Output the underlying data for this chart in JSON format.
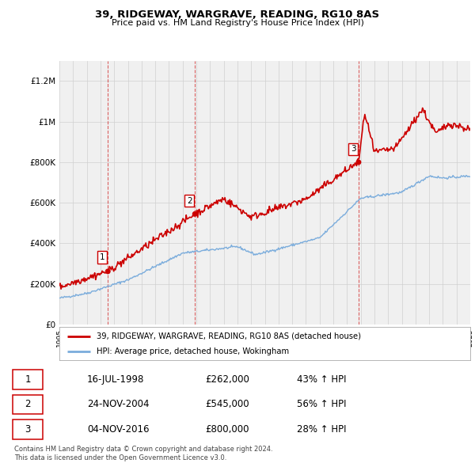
{
  "title": "39, RIDGEWAY, WARGRAVE, READING, RG10 8AS",
  "subtitle": "Price paid vs. HM Land Registry's House Price Index (HPI)",
  "sale_dates": [
    "1998-07-16",
    "2004-11-24",
    "2016-11-04"
  ],
  "sale_prices": [
    262000,
    545000,
    800000
  ],
  "sale_labels": [
    "1",
    "2",
    "3"
  ],
  "sale_hpi_pct": [
    "43%",
    "56%",
    "28%"
  ],
  "sale_date_labels": [
    "16-JUL-1998",
    "24-NOV-2004",
    "04-NOV-2016"
  ],
  "legend_entries": [
    "39, RIDGEWAY, WARGRAVE, READING, RG10 8AS (detached house)",
    "HPI: Average price, detached house, Wokingham"
  ],
  "footnote1": "Contains HM Land Registry data © Crown copyright and database right 2024.",
  "footnote2": "This data is licensed under the Open Government Licence v3.0.",
  "color_red": "#cc0000",
  "color_blue": "#7aacdc",
  "bg_color": "#f0f0f0",
  "grid_color": "#d0d0d0",
  "ylim_max": 1300000,
  "sale_price_strs": [
    "£262,000",
    "£545,000",
    "£800,000"
  ],
  "hpi_pcts": [
    "43% ↑ HPI",
    "56% ↑ HPI",
    "28% ↑ HPI"
  ]
}
